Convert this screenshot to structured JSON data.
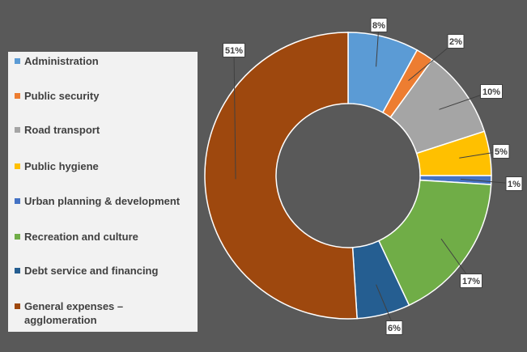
{
  "chart_data": {
    "type": "pie",
    "variant": "donut",
    "categories": [
      "Administration",
      "Public security",
      "Road transport",
      "Public hygiene",
      "Urban planning & development",
      "Recreation and culture",
      "Debt service and financing",
      "General expenses – agglomeration"
    ],
    "values": [
      8,
      2,
      10,
      5,
      1,
      17,
      6,
      51
    ],
    "data_labels": [
      "8%",
      "2%",
      "10%",
      "5%",
      "1%",
      "17%",
      "6%",
      "51%"
    ],
    "colors": [
      "#5b9bd5",
      "#ed7d31",
      "#a5a5a5",
      "#ffc000",
      "#4472c4",
      "#70ad47",
      "#255e91",
      "#9e480e"
    ],
    "legend_position": "left",
    "background": "#595959",
    "legend_background": "#f2f2f2"
  }
}
